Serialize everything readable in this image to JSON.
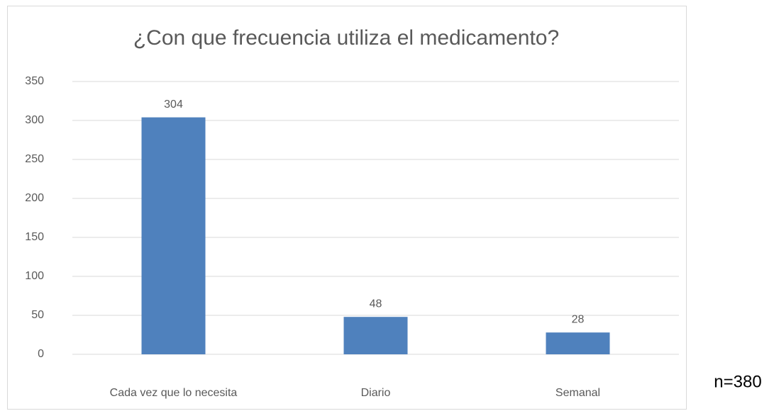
{
  "chart_data": {
    "type": "bar",
    "title": "¿Con que frecuencia utiliza el medicamento?",
    "categories": [
      "Cada vez que lo necesita",
      "Diario",
      "Semanal"
    ],
    "values": [
      304,
      48,
      28
    ],
    "color": "#4f81bd",
    "ylim": [
      0,
      350
    ],
    "yticks": [
      0,
      50,
      100,
      150,
      200,
      250,
      300,
      350
    ],
    "grid": true,
    "note": "n=380"
  }
}
